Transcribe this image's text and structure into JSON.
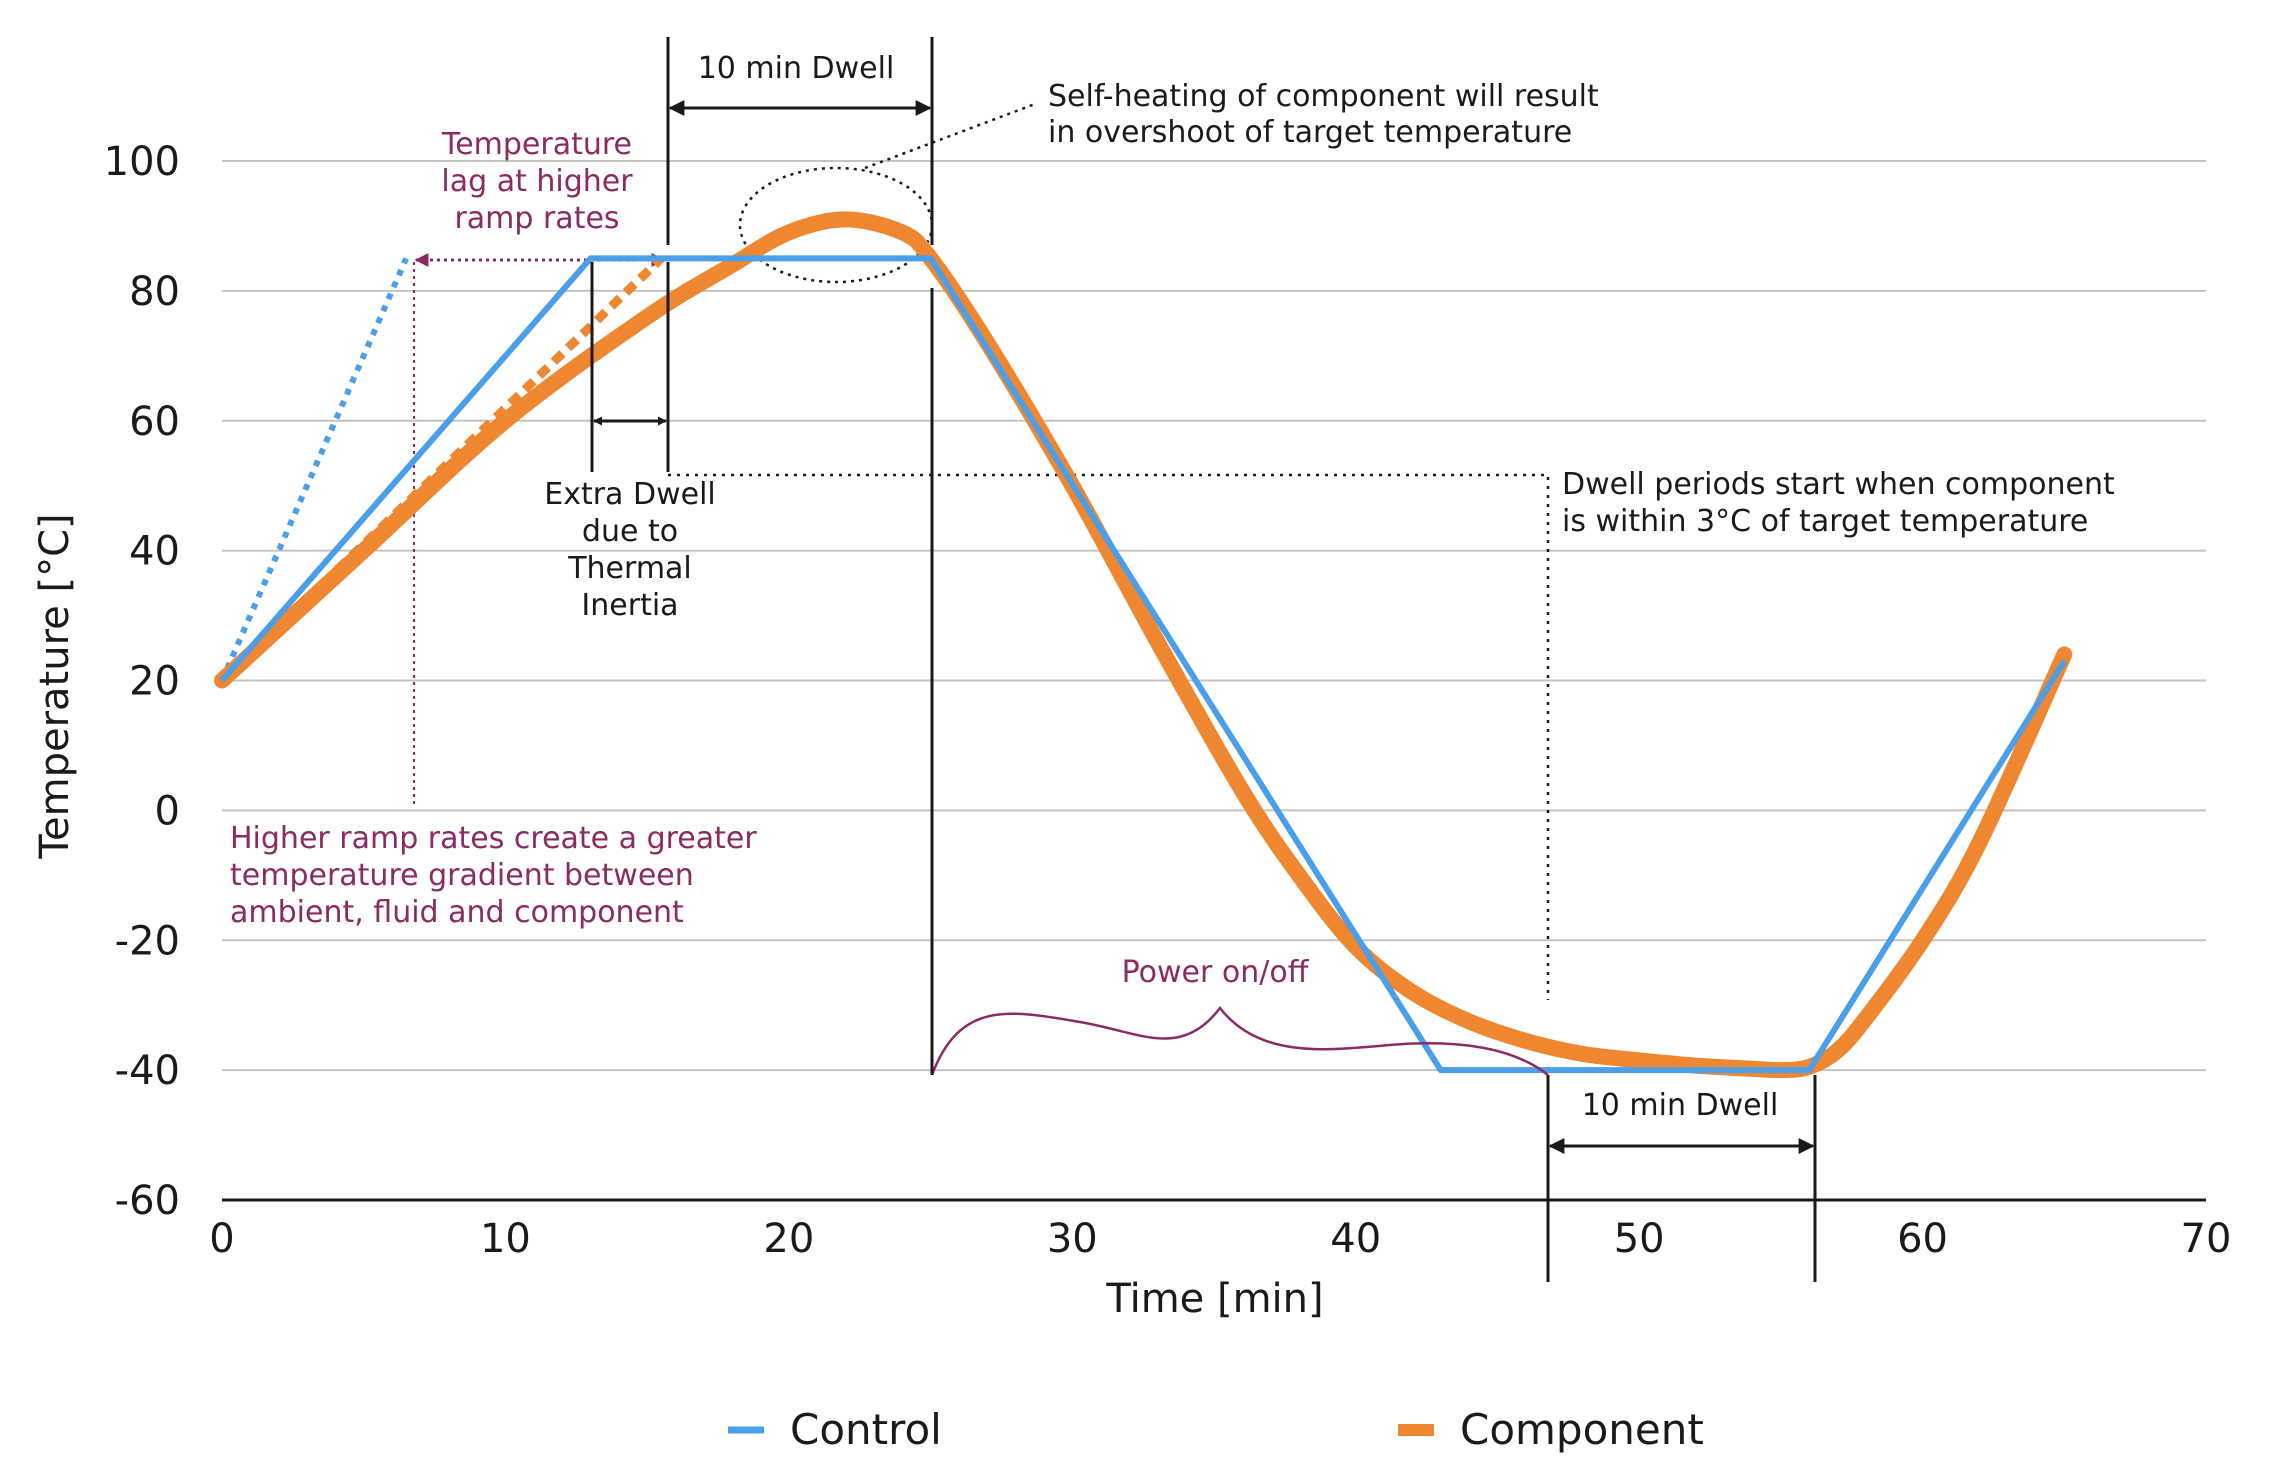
{
  "chart_data": {
    "type": "line",
    "title": "",
    "xlabel": "Time [min]",
    "ylabel": "Temperature [°C]",
    "xlim": [
      0,
      70
    ],
    "ylim": [
      -60,
      100
    ],
    "xticks": [
      0,
      10,
      20,
      30,
      40,
      50,
      60,
      70
    ],
    "yticks": [
      100,
      80,
      60,
      40,
      20,
      0,
      -20,
      -40,
      -60
    ],
    "grid": "horizontal",
    "legend_position": "bottom",
    "colors": {
      "control": "#4a9fe8",
      "component": "#ef8630",
      "annotation": "#8b2a63",
      "ink": "#1a1a1a"
    },
    "series": [
      {
        "name": "Control",
        "x": [
          0,
          13,
          25,
          43,
          56,
          65
        ],
        "y": [
          20,
          85,
          85,
          -40,
          -40,
          23
        ]
      },
      {
        "name": "Component",
        "x": [
          0,
          5,
          10,
          15,
          18,
          20,
          22,
          24,
          25,
          27,
          30,
          33,
          36,
          38,
          40,
          42,
          44,
          46,
          48,
          50,
          52,
          54,
          55,
          56,
          57,
          58,
          60,
          62,
          65
        ],
        "y": [
          20,
          40,
          60,
          76,
          84,
          89,
          91,
          89,
          85,
          72,
          50,
          26,
          3,
          -10,
          -21,
          -28,
          -32.5,
          -35.5,
          -37.5,
          -38.5,
          -39.3,
          -39.8,
          -40,
          -39.5,
          -37,
          -32,
          -20,
          -5,
          24
        ]
      },
      {
        "name": "Control (higher ramp rate)",
        "style": "dotted",
        "x": [
          0,
          6.5
        ],
        "y": [
          20,
          85
        ]
      },
      {
        "name": "Component (higher ramp rate)",
        "style": "dotted",
        "x": [
          0,
          15.5
        ],
        "y": [
          20,
          85
        ]
      }
    ],
    "annotations": {
      "dwell_top": "10 min Dwell",
      "dwell_bottom": "10 min Dwell",
      "self_heating_1": "Self-heating of component will result",
      "self_heating_2": "in overshoot of target temperature",
      "lag_1": "Temperature",
      "lag_2": "lag at higher",
      "lag_3": "ramp rates",
      "extra_dwell_1": "Extra Dwell",
      "extra_dwell_2": "due to",
      "extra_dwell_3": "Thermal",
      "extra_dwell_4": "Inertia",
      "dwell_start_1": "Dwell periods start when component",
      "dwell_start_2": "is within 3°C of target temperature",
      "gradient_1": "Higher ramp rates create a greater",
      "gradient_2": "temperature gradient between",
      "gradient_3": "ambient, fluid and component",
      "power": "Power on/off"
    },
    "legend": [
      "Control",
      "Component"
    ]
  }
}
